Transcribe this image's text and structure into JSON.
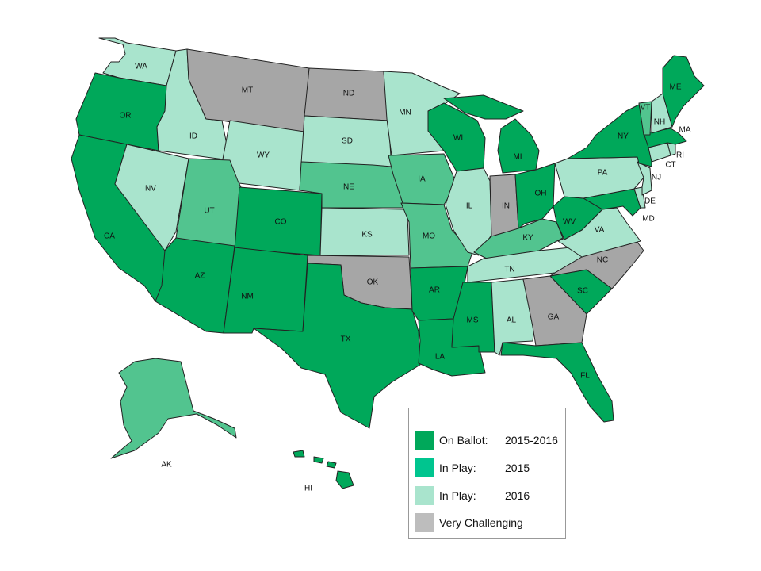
{
  "colors": {
    "on_ballot": "#00a85a",
    "in_play_2015": "#52c48f",
    "in_play_2016": "#a9e4cd",
    "very_challenging": "#a6a6a6"
  },
  "legend": [
    {
      "label": "On Ballot:",
      "year": "2015-2016",
      "color": "#00a85a"
    },
    {
      "label": "In Play:",
      "year": "2015",
      "color": "#00c58f"
    },
    {
      "label": "In Play:",
      "year": "2016",
      "color": "#a9e4cd"
    },
    {
      "label": "Very Challenging",
      "year": "",
      "color": "#bdbdbd"
    }
  ],
  "states": {
    "WA": {
      "label": "WA",
      "status": "in_play_2016"
    },
    "OR": {
      "label": "OR",
      "status": "on_ballot"
    },
    "CA": {
      "label": "CA",
      "status": "on_ballot"
    },
    "ID": {
      "label": "ID",
      "status": "in_play_2016"
    },
    "NV": {
      "label": "NV",
      "status": "in_play_2016"
    },
    "MT": {
      "label": "MT",
      "status": "very_challenging"
    },
    "WY": {
      "label": "WY",
      "status": "in_play_2016"
    },
    "UT": {
      "label": "UT",
      "status": "in_play_2015"
    },
    "AZ": {
      "label": "AZ",
      "status": "on_ballot"
    },
    "CO": {
      "label": "CO",
      "status": "on_ballot"
    },
    "NM": {
      "label": "NM",
      "status": "on_ballot"
    },
    "ND": {
      "label": "ND",
      "status": "very_challenging"
    },
    "SD": {
      "label": "SD",
      "status": "in_play_2016"
    },
    "NE": {
      "label": "NE",
      "status": "in_play_2015"
    },
    "KS": {
      "label": "KS",
      "status": "in_play_2016"
    },
    "OK": {
      "label": "OK",
      "status": "very_challenging"
    },
    "TX": {
      "label": "TX",
      "status": "on_ballot"
    },
    "MN": {
      "label": "MN",
      "status": "in_play_2016"
    },
    "IA": {
      "label": "IA",
      "status": "in_play_2015"
    },
    "MO": {
      "label": "MO",
      "status": "in_play_2015"
    },
    "AR": {
      "label": "AR",
      "status": "on_ballot"
    },
    "LA": {
      "label": "LA",
      "status": "on_ballot"
    },
    "WI": {
      "label": "WI",
      "status": "on_ballot"
    },
    "IL": {
      "label": "IL",
      "status": "in_play_2016"
    },
    "MI": {
      "label": "MI",
      "status": "on_ballot"
    },
    "IN": {
      "label": "IN",
      "status": "very_challenging"
    },
    "OH": {
      "label": "OH",
      "status": "on_ballot"
    },
    "KY": {
      "label": "KY",
      "status": "in_play_2015"
    },
    "TN": {
      "label": "TN",
      "status": "in_play_2016"
    },
    "MS": {
      "label": "MS",
      "status": "on_ballot"
    },
    "AL": {
      "label": "AL",
      "status": "in_play_2016"
    },
    "GA": {
      "label": "GA",
      "status": "very_challenging"
    },
    "FL": {
      "label": "FL",
      "status": "on_ballot"
    },
    "SC": {
      "label": "SC",
      "status": "on_ballot"
    },
    "NC": {
      "label": "NC",
      "status": "very_challenging"
    },
    "VA": {
      "label": "VA",
      "status": "in_play_2016"
    },
    "WV": {
      "label": "WV",
      "status": "on_ballot"
    },
    "MD": {
      "label": "MD",
      "status": "on_ballot"
    },
    "DE": {
      "label": "DE",
      "status": "in_play_2016"
    },
    "PA": {
      "label": "PA",
      "status": "in_play_2016"
    },
    "NJ": {
      "label": "NJ",
      "status": "in_play_2016"
    },
    "NY": {
      "label": "NY",
      "status": "on_ballot"
    },
    "CT": {
      "label": "CT",
      "status": "in_play_2016"
    },
    "RI": {
      "label": "RI",
      "status": "in_play_2016"
    },
    "MA": {
      "label": "MA",
      "status": "on_ballot"
    },
    "VT": {
      "label": "VT",
      "status": "in_play_2015"
    },
    "NH": {
      "label": "NH",
      "status": "in_play_2016"
    },
    "ME": {
      "label": "ME",
      "status": "on_ballot"
    },
    "AK": {
      "label": "AK",
      "status": "in_play_2015"
    },
    "HI": {
      "label": "HI",
      "status": "on_ballot"
    }
  }
}
